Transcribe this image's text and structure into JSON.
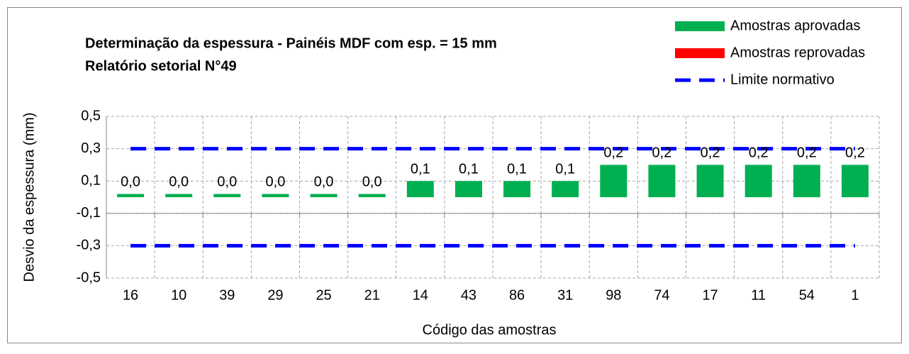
{
  "chart_data": {
    "type": "bar",
    "title": "Determinação da espessura - Painéis MDF com esp. = 15 mm",
    "subtitle": "Relatório setorial N°49",
    "x_label": "Código das amostras",
    "y_label": "Desvio da espessura (mm)",
    "categories": [
      "16",
      "10",
      "39",
      "29",
      "25",
      "21",
      "14",
      "43",
      "86",
      "31",
      "98",
      "74",
      "17",
      "11",
      "54",
      "1"
    ],
    "series": [
      {
        "name": "Amostras aprovadas",
        "color": "#00b050",
        "values": [
          0.02,
          0.02,
          0.02,
          0.02,
          0.02,
          0.02,
          0.1,
          0.1,
          0.1,
          0.1,
          0.2,
          0.2,
          0.2,
          0.2,
          0.2,
          0.2
        ],
        "value_labels": [
          "0,0",
          "0,0",
          "0,0",
          "0,0",
          "0,0",
          "0,0",
          "0,1",
          "0,1",
          "0,1",
          "0,1",
          "0,2",
          "0,2",
          "0,2",
          "0,2",
          "0,2",
          "0,2"
        ]
      },
      {
        "name": "Amostras reprovadas",
        "color": "#ff0000",
        "values": [
          null,
          null,
          null,
          null,
          null,
          null,
          null,
          null,
          null,
          null,
          null,
          null,
          null,
          null,
          null,
          null
        ]
      }
    ],
    "limit_lines": {
      "name": "Limite normativo",
      "color": "#0000ff",
      "values": [
        0.3,
        -0.3
      ]
    },
    "ylim": [
      -0.5,
      0.5
    ],
    "yticks": [
      {
        "value": 0.5,
        "label": "0,5"
      },
      {
        "value": 0.3,
        "label": "0,3"
      },
      {
        "value": 0.1,
        "label": "0,1"
      },
      {
        "value": -0.1,
        "label": "-0,1"
      },
      {
        "value": -0.3,
        "label": "-0,3"
      },
      {
        "value": -0.5,
        "label": "-0,5"
      }
    ],
    "x_axis_at": -0.1,
    "grid": true,
    "legend": "top-right"
  }
}
